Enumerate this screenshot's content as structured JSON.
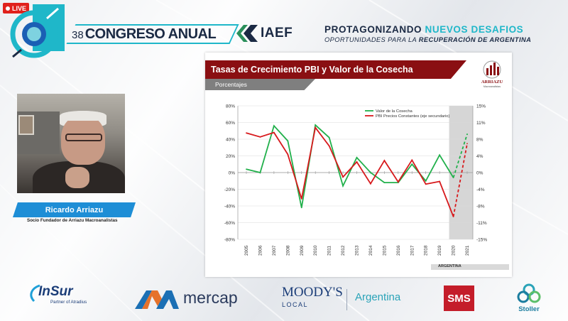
{
  "live_badge": {
    "label": "LIVE"
  },
  "event": {
    "edition": "38",
    "title": "CONGRESO ANUAL",
    "org": "IAEF",
    "slogan_main": "PROTAGONIZANDO",
    "slogan_accent": "NUEVOS DESAFIOS",
    "slogan_sub_prefix": "OPORTUNIDADES PARA LA ",
    "slogan_sub_bold": "RECUPERACIÓN DE ARGENTINA"
  },
  "speaker": {
    "name": "Ricardo Arriazu",
    "role": "Socio Fundador de Arriazu Macroanalistas"
  },
  "slide": {
    "title": "Tasas de Crecimiento PBI y Valor de la Cosecha",
    "subtitle": "Porcentajes",
    "logo_text": "ARRIAZU",
    "logo_subtext": "Macroanalistas",
    "footer": "ARGENTINA"
  },
  "chart_data": {
    "type": "line",
    "x": [
      2005,
      2006,
      2007,
      2008,
      2009,
      2010,
      2011,
      2012,
      2013,
      2014,
      2015,
      2016,
      2017,
      2018,
      2019,
      2020,
      2021
    ],
    "y_left_ticks": [
      "80%",
      "60%",
      "40%",
      "20%",
      "0%",
      "-20%",
      "-40%",
      "-60%",
      "-80%"
    ],
    "y_right_ticks": [
      "15%",
      "11%",
      "8%",
      "4%",
      "0%",
      "-4%",
      "-8%",
      "-11%",
      "-15%"
    ],
    "ylim_left": [
      -80,
      80
    ],
    "ylim_right": [
      -15,
      15
    ],
    "legend_position": "top-right",
    "series": [
      {
        "name": "Valor de la Cosecha",
        "axis": "left",
        "color": "#21b04b",
        "values": [
          4,
          0,
          56,
          38,
          -42,
          57,
          42,
          -16,
          18,
          0,
          -12,
          -12,
          10,
          -10,
          21,
          -6,
          46
        ],
        "projected_from": 2020
      },
      {
        "name": "PBI Precios Constantes (eje secundario)",
        "axis": "right",
        "color": "#d7191c",
        "values": [
          8.9,
          8.0,
          9.0,
          4.1,
          -5.9,
          10.1,
          6.0,
          -1.0,
          2.4,
          -2.5,
          2.7,
          -2.1,
          2.8,
          -2.6,
          -2.0,
          -9.9,
          6.5
        ],
        "projected_from": 2020
      }
    ],
    "shaded_from": 2020
  },
  "sponsors": {
    "insur": "InSur",
    "insur_tag": "Partner of Atradius",
    "mercap": "mercap",
    "moodys": "MOODY'S",
    "moodys_local": "LOCAL",
    "moodys_country": "Argentina",
    "sms": "SMS",
    "stoller": "Stoller"
  }
}
